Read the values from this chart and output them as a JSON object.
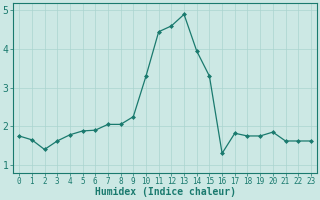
{
  "x": [
    0,
    1,
    2,
    3,
    4,
    5,
    6,
    7,
    8,
    9,
    10,
    11,
    12,
    13,
    14,
    15,
    16,
    17,
    18,
    19,
    20,
    21,
    22,
    23
  ],
  "y": [
    1.75,
    1.65,
    1.4,
    1.62,
    1.78,
    1.88,
    1.9,
    2.05,
    2.05,
    2.25,
    3.3,
    4.45,
    4.6,
    4.9,
    3.95,
    3.3,
    1.3,
    1.82,
    1.75,
    1.75,
    1.85,
    1.62,
    1.62,
    1.62
  ],
  "line_color": "#1a7a6e",
  "marker": "D",
  "markersize": 2.0,
  "linewidth": 0.9,
  "xlabel": "Humidex (Indice chaleur)",
  "xlabel_fontsize": 7,
  "xlabel_color": "#1a7a6e",
  "xlabel_fontweight": "bold",
  "ylabel_ticks": [
    1,
    2,
    3,
    4,
    5
  ],
  "xtick_labels": [
    "0",
    "1",
    "2",
    "3",
    "4",
    "5",
    "6",
    "7",
    "8",
    "9",
    "10",
    "11",
    "12",
    "13",
    "14",
    "15",
    "16",
    "17",
    "18",
    "19",
    "20",
    "21",
    "22",
    "23"
  ],
  "ylim": [
    0.8,
    5.2
  ],
  "xlim": [
    -0.5,
    23.5
  ],
  "bg_color": "#cce8e4",
  "grid_color": "#aad4cf",
  "tick_color": "#1a7a6e",
  "tick_fontsize": 5.5,
  "ytick_fontsize": 7,
  "tick_labelcolor": "#1a7a6e"
}
